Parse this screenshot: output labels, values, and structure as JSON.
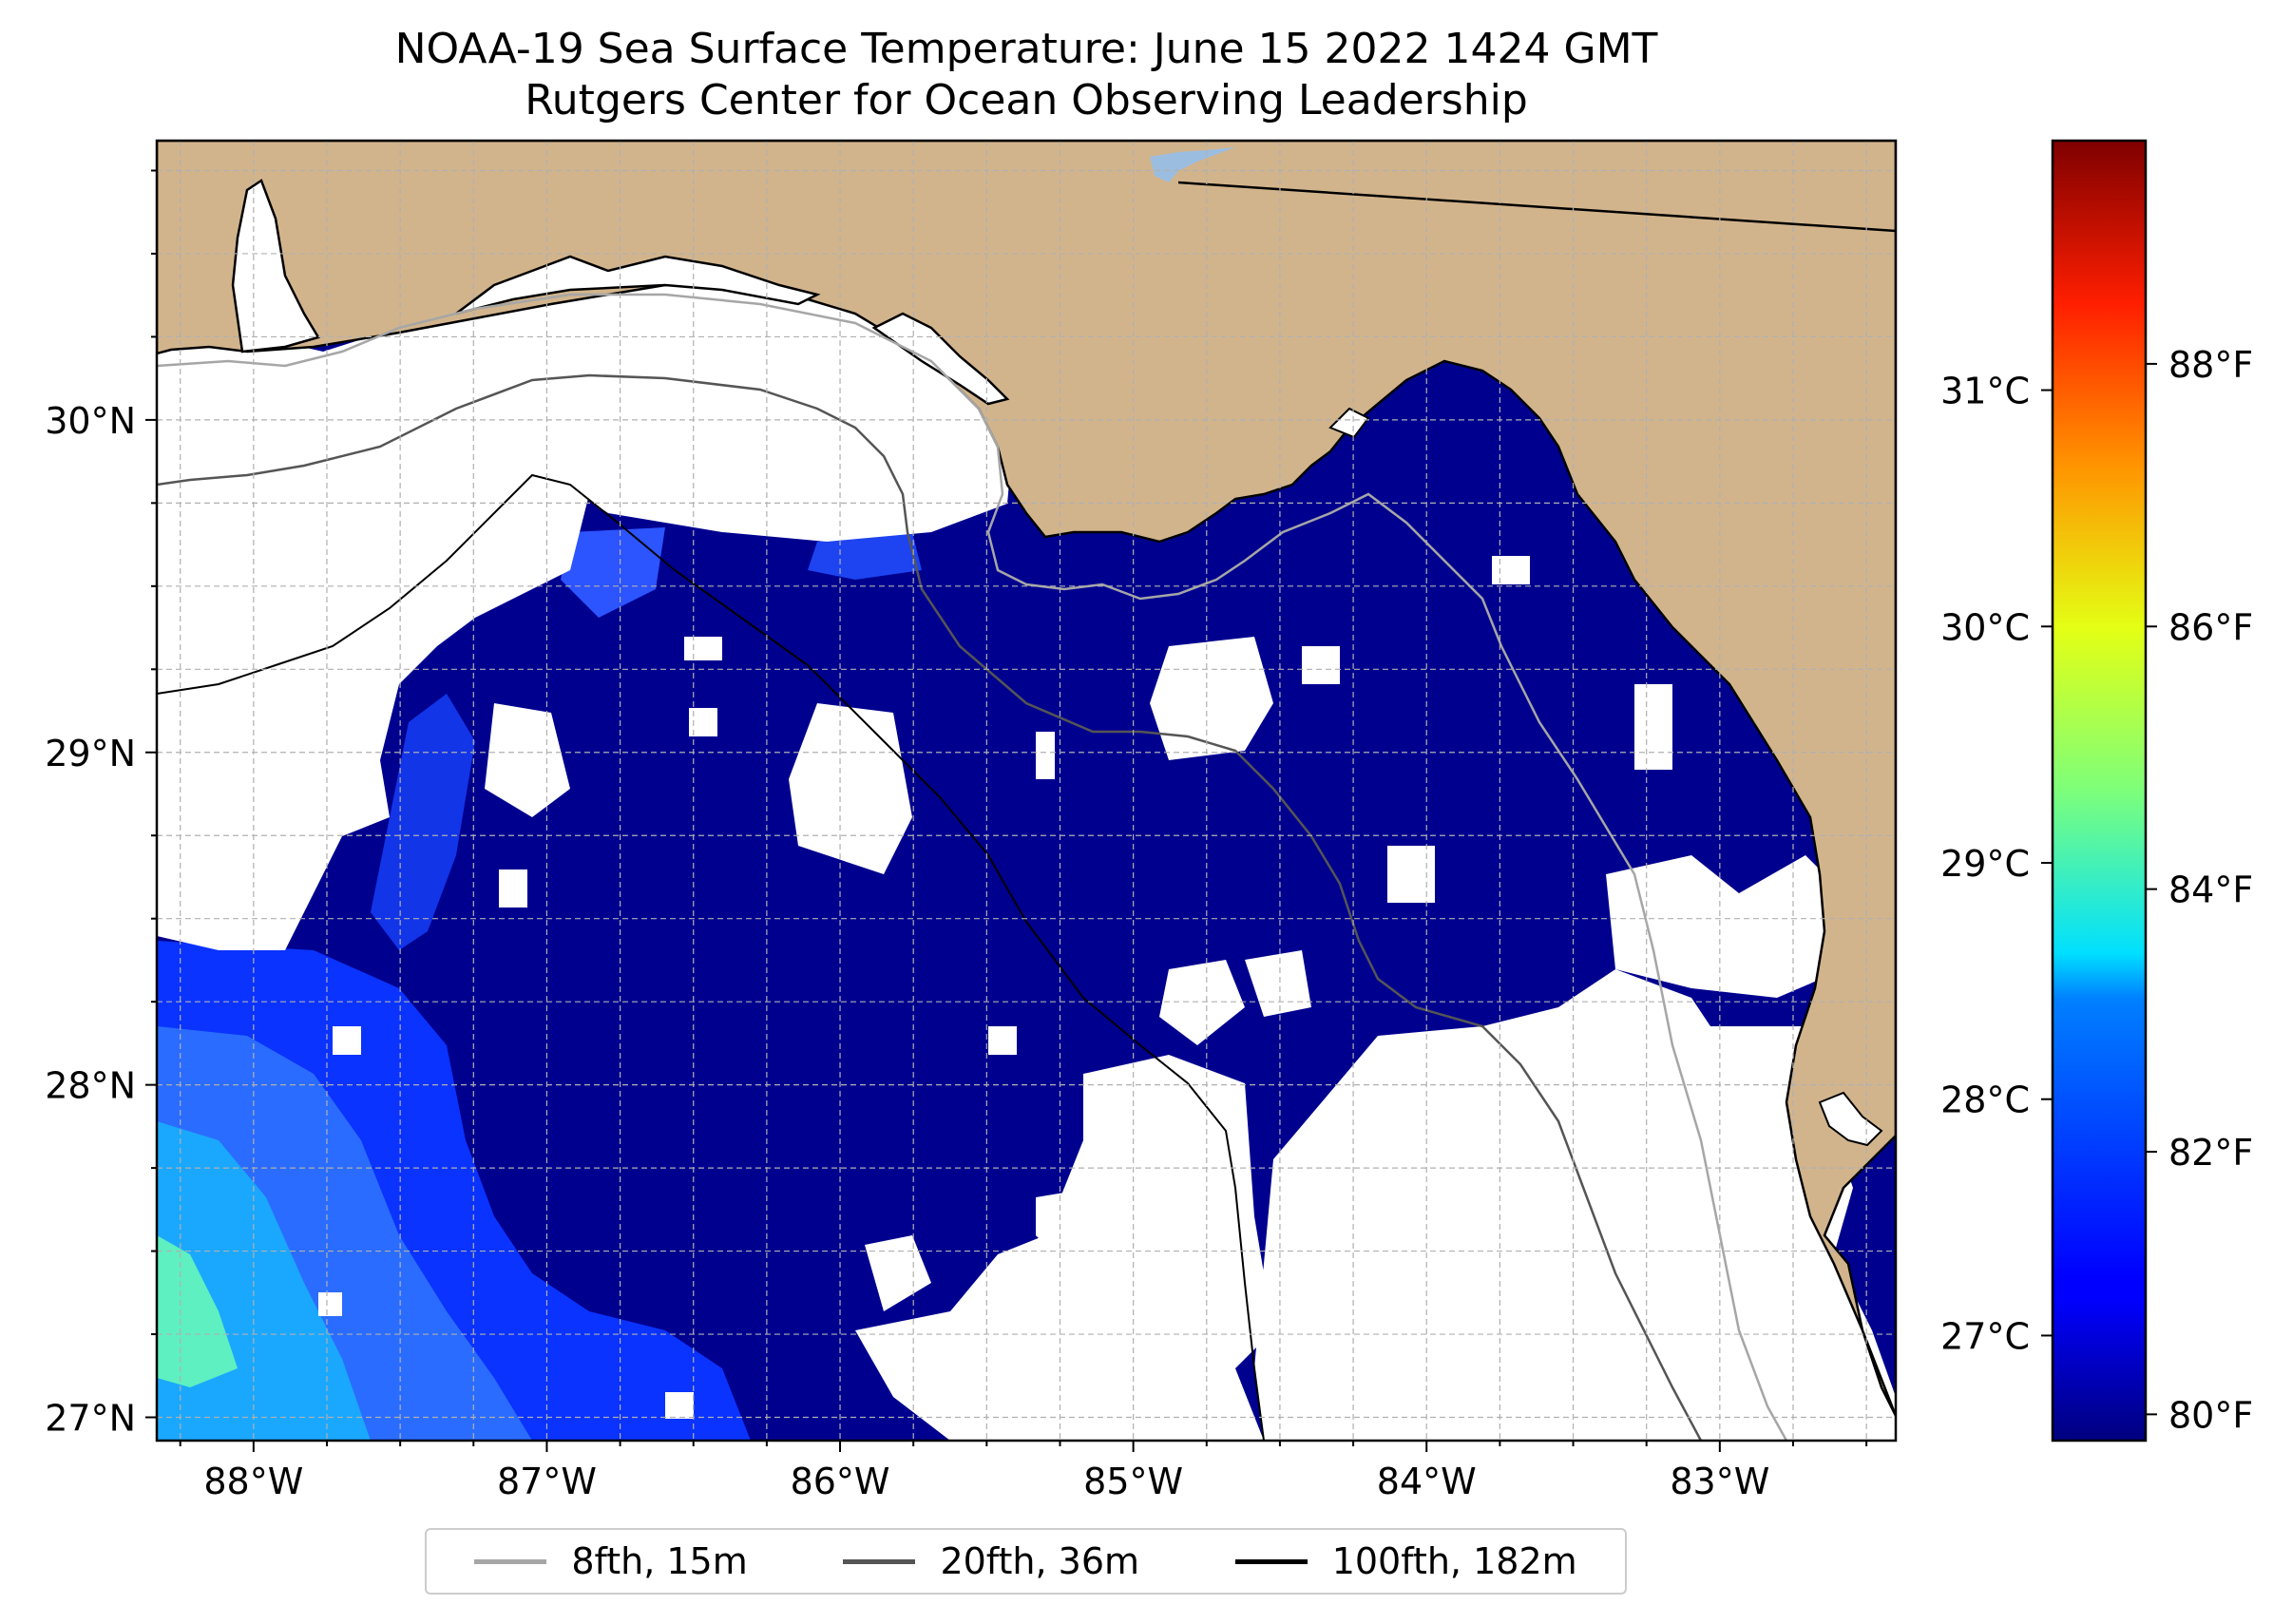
{
  "title": "NOAA-19 Sea Surface Temperature: June 15 2022 1424 GMT",
  "subtitle": "Rutgers Center for Ocean Observing Leadership",
  "map": {
    "lon_range": [
      -88.33,
      -82.4
    ],
    "lat_range": [
      26.93,
      30.84
    ],
    "lon_ticks": [
      {
        "value": -88,
        "label": "88°W"
      },
      {
        "value": -87,
        "label": "87°W"
      },
      {
        "value": -86,
        "label": "86°W"
      },
      {
        "value": -85,
        "label": "85°W"
      },
      {
        "value": -84,
        "label": "84°W"
      },
      {
        "value": -83,
        "label": "83°W"
      }
    ],
    "lat_ticks": [
      {
        "value": 27,
        "label": "27°N"
      },
      {
        "value": 28,
        "label": "28°N"
      },
      {
        "value": 29,
        "label": "29°N"
      },
      {
        "value": 30,
        "label": "30°N"
      }
    ],
    "grid": true,
    "colors": {
      "land": "#d2b48c",
      "cloud": "#ffffff",
      "sst_dominant": "#00008f",
      "lake": "#9bbde0"
    }
  },
  "colorbar": {
    "colormap": "jet",
    "celsius_ticks": [
      "31°C",
      "30°C",
      "29°C",
      "28°C",
      "27°C"
    ],
    "fahrenheit_ticks": [
      "88°F",
      "86°F",
      "84°F",
      "82°F",
      "80°F"
    ],
    "range_F": [
      79.8,
      89.7
    ]
  },
  "legend": {
    "position": "bottom-center",
    "items": [
      {
        "label": "8fth, 15m",
        "color": "#a6a6a6"
      },
      {
        "label": "20fth, 36m",
        "color": "#555555"
      },
      {
        "label": "100fth, 182m",
        "color": "#000000"
      }
    ]
  }
}
